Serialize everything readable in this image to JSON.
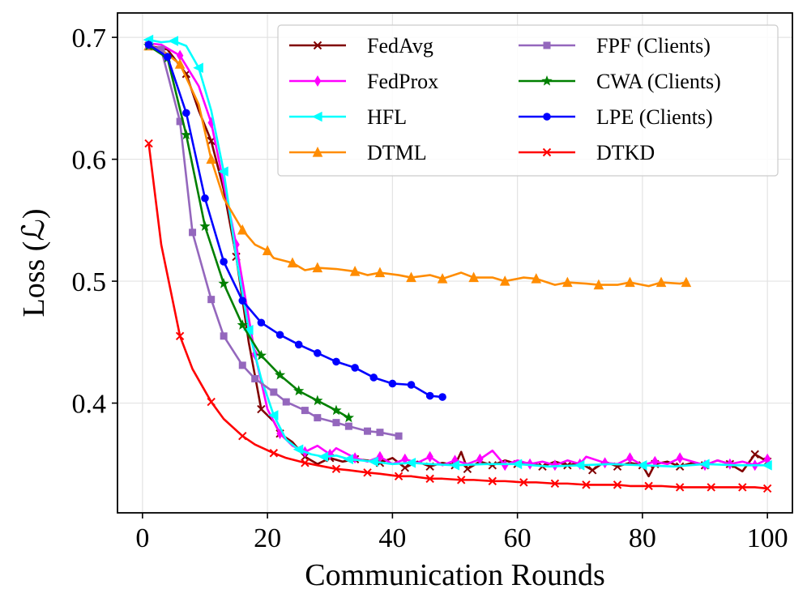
{
  "chart_data": {
    "type": "line",
    "title": "",
    "xlabel": "Communication Rounds",
    "ylabel": "Loss (ℒ)",
    "xlim": [
      -4,
      104
    ],
    "ylim": [
      0.31,
      0.72
    ],
    "xticks": [
      0,
      20,
      40,
      60,
      80,
      100
    ],
    "xtick_labels": [
      "0",
      "20",
      "40",
      "60",
      "80",
      "100"
    ],
    "yticks": [
      0.4,
      0.5,
      0.6,
      0.7
    ],
    "ytick_labels": [
      "0.4",
      "0.5",
      "0.6",
      "0.7"
    ],
    "grid": true,
    "legend_location": "top-right",
    "series": [
      {
        "name": "FedAvg",
        "color": "#800000",
        "marker": "x",
        "x": [
          1,
          4,
          7,
          9,
          11,
          13,
          15,
          17,
          19,
          21,
          22,
          24,
          26,
          28,
          30,
          32,
          34,
          36,
          38,
          40,
          42,
          44,
          46,
          48,
          50,
          51,
          52,
          54,
          56,
          58,
          60,
          62,
          64,
          66,
          68,
          70,
          72,
          74,
          76,
          78,
          80,
          81,
          82,
          84,
          86,
          88,
          90,
          92,
          94,
          96,
          98,
          100
        ],
        "y": [
          0.693,
          0.69,
          0.67,
          0.64,
          0.615,
          0.575,
          0.52,
          0.45,
          0.395,
          0.385,
          0.375,
          0.368,
          0.356,
          0.35,
          0.355,
          0.352,
          0.354,
          0.353,
          0.351,
          0.355,
          0.347,
          0.352,
          0.348,
          0.351,
          0.349,
          0.36,
          0.346,
          0.352,
          0.349,
          0.353,
          0.35,
          0.351,
          0.348,
          0.352,
          0.349,
          0.351,
          0.345,
          0.352,
          0.348,
          0.351,
          0.349,
          0.34,
          0.35,
          0.352,
          0.348,
          0.351,
          0.349,
          0.353,
          0.35,
          0.344,
          0.358,
          0.352
        ]
      },
      {
        "name": "FedProx",
        "color": "#ff00ff",
        "marker": "d",
        "x": [
          1,
          3,
          6,
          9,
          11,
          13,
          15,
          16,
          18,
          20,
          22,
          24,
          26,
          28,
          30,
          31,
          34,
          36,
          38,
          40,
          42,
          44,
          46,
          48,
          50,
          52,
          54,
          56,
          58,
          60,
          62,
          64,
          66,
          68,
          70,
          71,
          74,
          76,
          78,
          80,
          82,
          84,
          86,
          88,
          90,
          92,
          94,
          96,
          98,
          100
        ],
        "y": [
          0.695,
          0.694,
          0.685,
          0.66,
          0.63,
          0.58,
          0.53,
          0.5,
          0.44,
          0.395,
          0.375,
          0.365,
          0.36,
          0.365,
          0.358,
          0.363,
          0.355,
          0.352,
          0.356,
          0.35,
          0.354,
          0.351,
          0.356,
          0.349,
          0.353,
          0.35,
          0.354,
          0.361,
          0.349,
          0.353,
          0.35,
          0.352,
          0.349,
          0.353,
          0.35,
          0.356,
          0.351,
          0.35,
          0.355,
          0.349,
          0.352,
          0.35,
          0.355,
          0.352,
          0.349,
          0.353,
          0.35,
          0.352,
          0.349,
          0.354
        ]
      },
      {
        "name": "HFL",
        "color": "#00ffff",
        "marker": "<",
        "x": [
          1,
          3,
          5,
          7,
          9,
          11,
          13,
          15,
          17,
          19,
          21,
          23,
          25,
          27,
          29,
          31,
          33,
          35,
          37,
          40,
          43,
          46,
          50,
          55,
          60,
          65,
          70,
          75,
          80,
          85,
          90,
          95,
          100
        ],
        "y": [
          0.698,
          0.696,
          0.697,
          0.693,
          0.675,
          0.64,
          0.59,
          0.52,
          0.46,
          0.42,
          0.39,
          0.37,
          0.362,
          0.358,
          0.356,
          0.357,
          0.354,
          0.353,
          0.352,
          0.35,
          0.351,
          0.35,
          0.349,
          0.35,
          0.35,
          0.348,
          0.349,
          0.35,
          0.349,
          0.348,
          0.35,
          0.349,
          0.349
        ]
      },
      {
        "name": "DTML",
        "color": "#ff8c00",
        "marker": "^",
        "x": [
          1,
          3,
          6,
          9,
          11,
          13,
          16,
          18,
          20,
          21,
          24,
          26,
          28,
          31,
          34,
          36,
          38,
          41,
          43,
          46,
          48,
          51,
          53,
          56,
          58,
          61,
          63,
          66,
          68,
          71,
          73,
          76,
          78,
          81,
          83,
          86,
          87
        ],
        "y": [
          0.693,
          0.69,
          0.678,
          0.645,
          0.6,
          0.568,
          0.542,
          0.53,
          0.525,
          0.519,
          0.515,
          0.509,
          0.511,
          0.51,
          0.508,
          0.505,
          0.507,
          0.505,
          0.503,
          0.505,
          0.502,
          0.507,
          0.503,
          0.503,
          0.5,
          0.503,
          0.502,
          0.497,
          0.499,
          0.498,
          0.497,
          0.497,
          0.499,
          0.496,
          0.499,
          0.498,
          0.499
        ]
      },
      {
        "name": "FPF (Clients)",
        "color": "#9467bd",
        "marker": "s",
        "x": [
          1,
          3,
          6,
          8,
          11,
          13,
          16,
          18,
          21,
          23,
          26,
          28,
          31,
          33,
          36,
          38,
          41
        ],
        "y": [
          0.693,
          0.69,
          0.631,
          0.54,
          0.485,
          0.455,
          0.431,
          0.42,
          0.409,
          0.401,
          0.394,
          0.388,
          0.384,
          0.381,
          0.377,
          0.376,
          0.373
        ]
      },
      {
        "name": "CWA (Clients)",
        "color": "#008000",
        "marker": "*",
        "x": [
          1,
          4,
          7,
          10,
          13,
          16,
          19,
          22,
          25,
          28,
          31,
          33
        ],
        "y": [
          0.693,
          0.683,
          0.62,
          0.545,
          0.498,
          0.464,
          0.439,
          0.423,
          0.41,
          0.402,
          0.394,
          0.388
        ]
      },
      {
        "name": "LPE (Clients)",
        "color": "#0000ff",
        "marker": "o",
        "x": [
          1,
          4,
          7,
          10,
          13,
          16,
          19,
          22,
          25,
          28,
          31,
          34,
          37,
          40,
          43,
          46,
          48
        ],
        "y": [
          0.694,
          0.684,
          0.638,
          0.568,
          0.516,
          0.484,
          0.466,
          0.456,
          0.448,
          0.441,
          0.434,
          0.429,
          0.421,
          0.416,
          0.415,
          0.406,
          0.405
        ]
      },
      {
        "name": "DTKD",
        "color": "#ff0000",
        "marker": "x",
        "x": [
          1,
          3,
          6,
          8,
          11,
          13,
          16,
          18,
          21,
          23,
          26,
          28,
          31,
          33,
          36,
          38,
          41,
          43,
          46,
          48,
          51,
          53,
          56,
          58,
          61,
          63,
          66,
          68,
          71,
          73,
          76,
          78,
          81,
          83,
          86,
          88,
          91,
          93,
          96,
          98,
          100
        ],
        "y": [
          0.613,
          0.53,
          0.455,
          0.428,
          0.401,
          0.387,
          0.373,
          0.366,
          0.359,
          0.355,
          0.351,
          0.349,
          0.346,
          0.345,
          0.343,
          0.342,
          0.34,
          0.34,
          0.338,
          0.338,
          0.337,
          0.337,
          0.336,
          0.336,
          0.335,
          0.335,
          0.334,
          0.334,
          0.333,
          0.333,
          0.333,
          0.332,
          0.332,
          0.332,
          0.331,
          0.331,
          0.331,
          0.331,
          0.331,
          0.331,
          0.33
        ]
      }
    ]
  }
}
